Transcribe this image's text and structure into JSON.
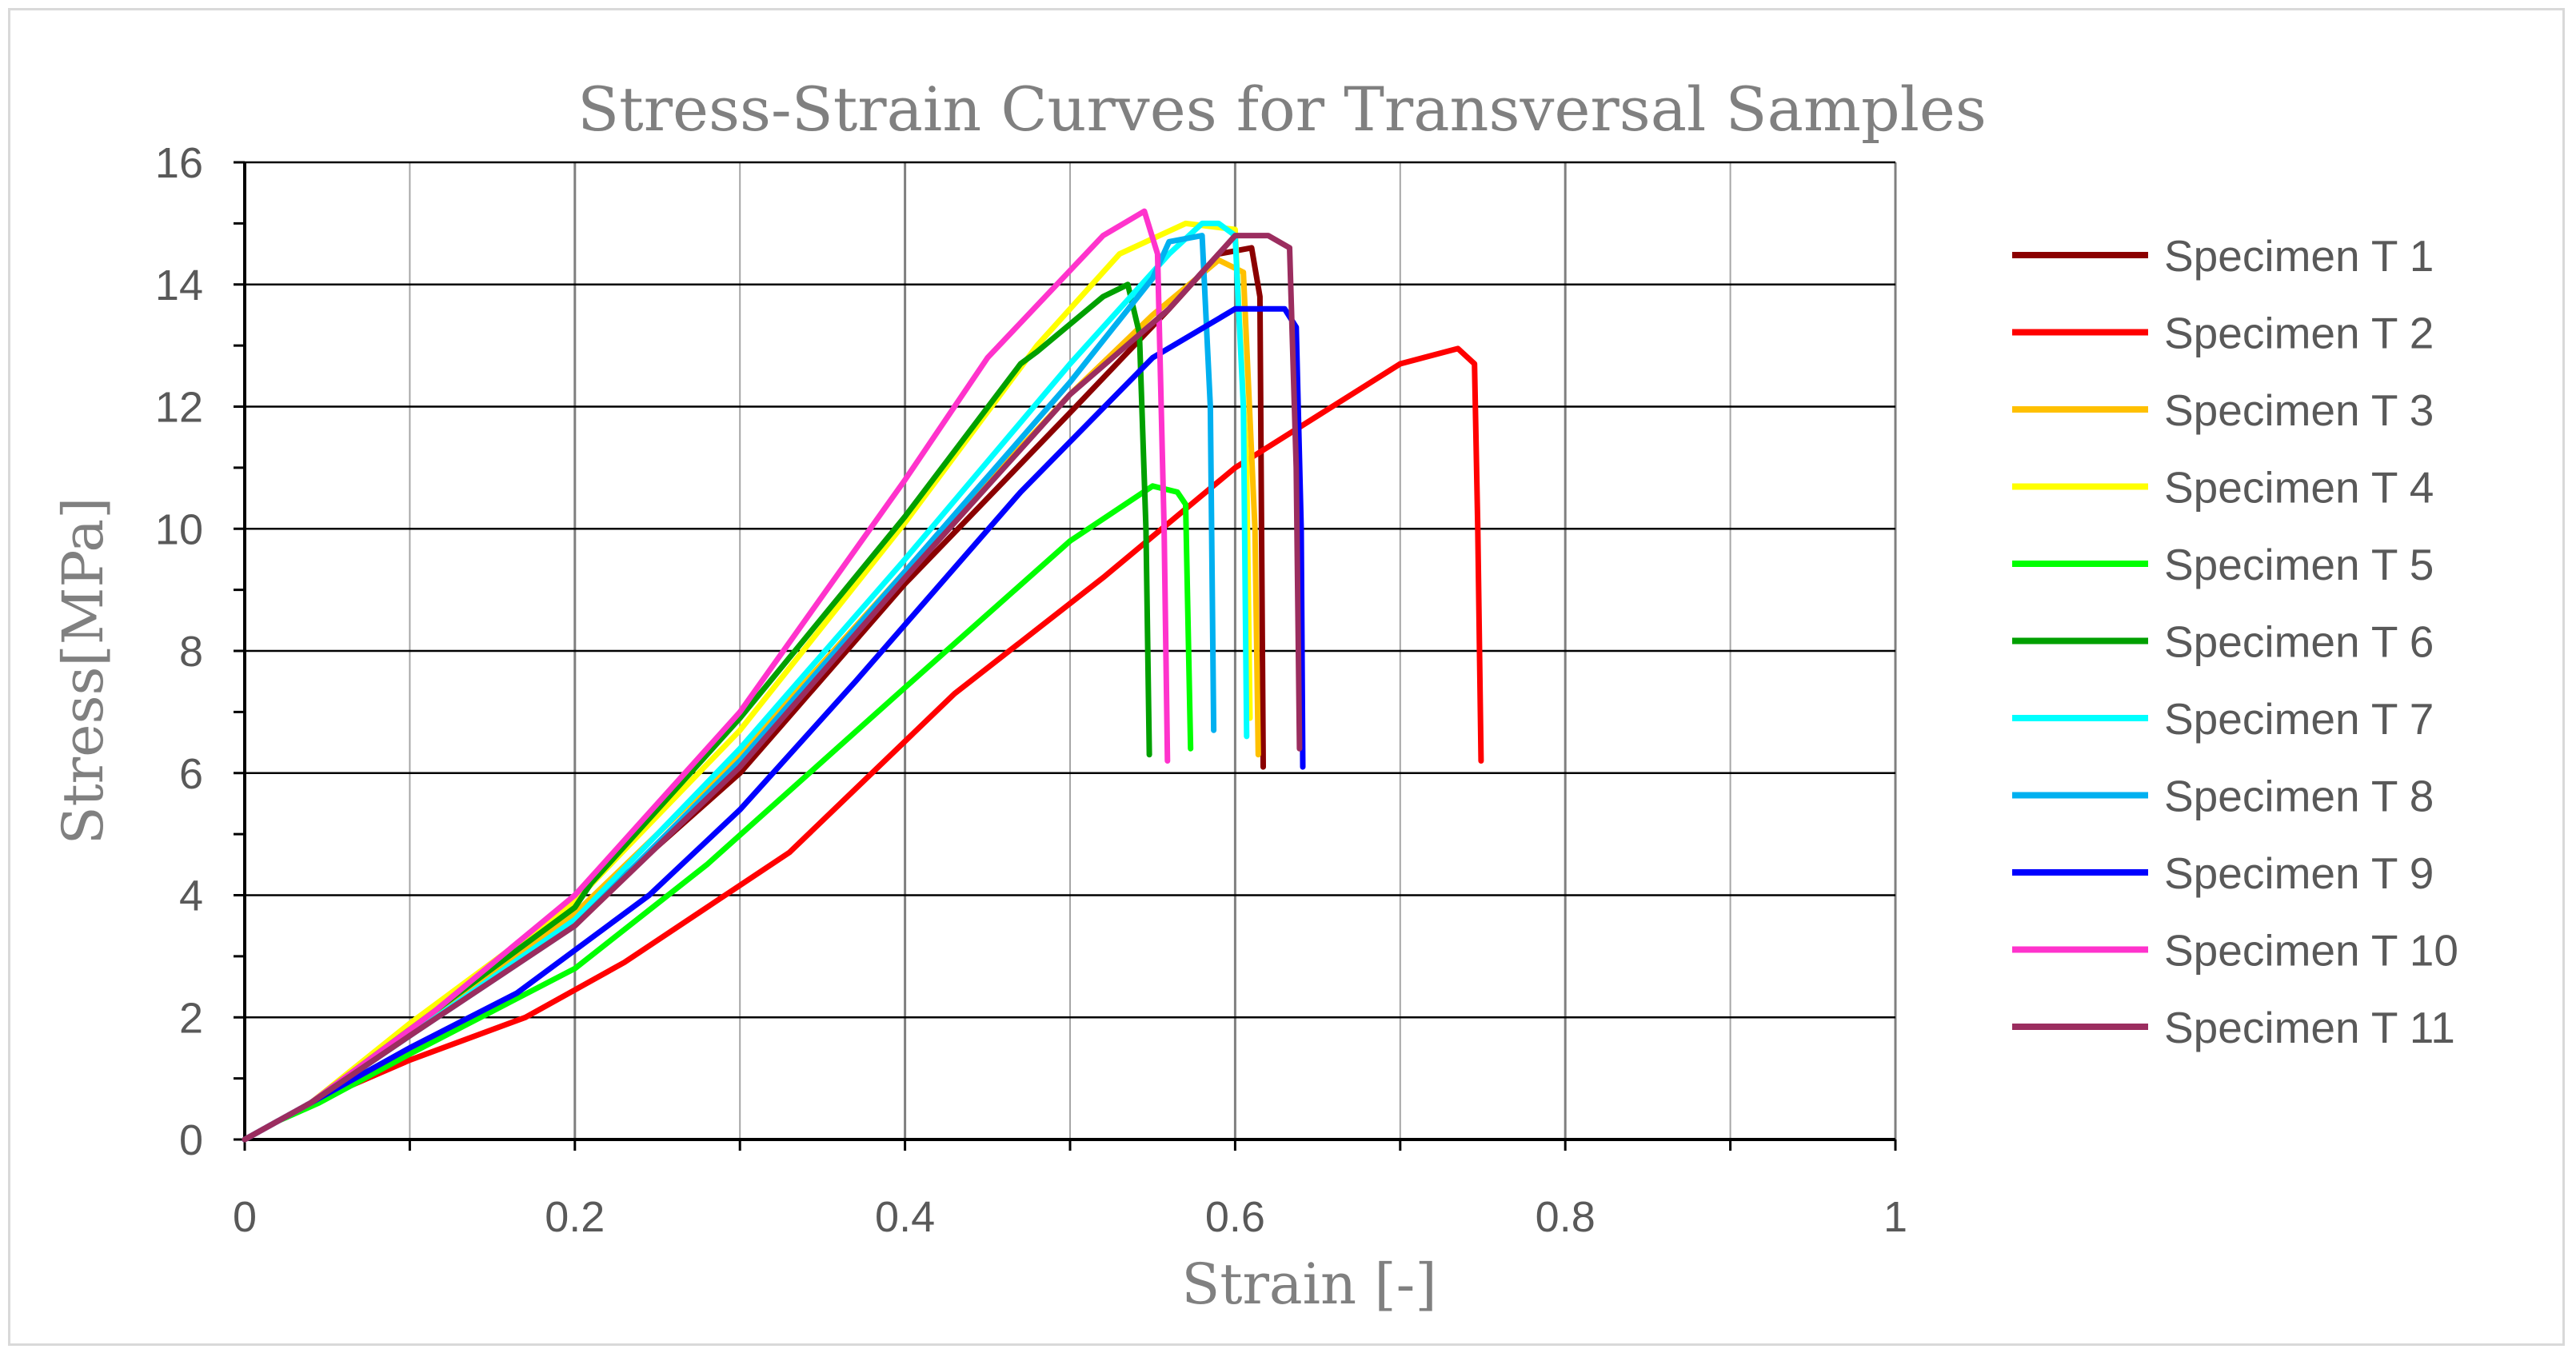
{
  "chart_data": {
    "type": "line",
    "title": "Stress-Strain Curves for Transversal Samples",
    "xlabel": "Strain [-]",
    "ylabel": "Stress[MPa]",
    "xlim": [
      0,
      1
    ],
    "ylim": [
      0,
      16
    ],
    "xticks": [
      0,
      0.2,
      0.4,
      0.6,
      0.8,
      1
    ],
    "xtick_labels": [
      "0",
      "0.2",
      "0.4",
      "0.6",
      "0.8",
      "1"
    ],
    "yticks": [
      0,
      2,
      4,
      6,
      8,
      10,
      12,
      14,
      16
    ],
    "ytick_labels": [
      "0",
      "2",
      "4",
      "6",
      "8",
      "10",
      "12",
      "14",
      "16"
    ],
    "grid": true,
    "legend_position": "right",
    "series": [
      {
        "name": "Specimen T 1",
        "color": "#8b0000",
        "x": [
          0,
          0.02,
          0.04,
          0.1,
          0.2,
          0.3,
          0.4,
          0.5,
          0.56,
          0.59,
          0.61,
          0.615,
          0.617
        ],
        "y": [
          0,
          0.3,
          0.6,
          1.7,
          3.6,
          6.0,
          9.1,
          11.9,
          13.6,
          14.5,
          14.6,
          13.8,
          6.1
        ]
      },
      {
        "name": "Specimen T 2",
        "color": "#ff0000",
        "x": [
          0,
          0.02,
          0.04,
          0.1,
          0.17,
          0.23,
          0.33,
          0.43,
          0.52,
          0.6,
          0.7,
          0.735,
          0.745,
          0.747,
          0.749
        ],
        "y": [
          0,
          0.3,
          0.6,
          1.3,
          2.0,
          2.9,
          4.7,
          7.3,
          9.2,
          11.0,
          12.7,
          12.95,
          12.7,
          10.0,
          6.2
        ]
      },
      {
        "name": "Specimen T 3",
        "color": "#ffc000",
        "x": [
          0,
          0.02,
          0.04,
          0.1,
          0.2,
          0.3,
          0.4,
          0.5,
          0.55,
          0.59,
          0.605,
          0.612,
          0.614
        ],
        "y": [
          0,
          0.3,
          0.6,
          1.8,
          3.7,
          6.3,
          9.3,
          12.2,
          13.5,
          14.4,
          14.2,
          10.0,
          6.3
        ]
      },
      {
        "name": "Specimen T 4",
        "color": "#ffff00",
        "x": [
          0,
          0.02,
          0.04,
          0.1,
          0.2,
          0.3,
          0.4,
          0.48,
          0.53,
          0.57,
          0.6,
          0.607,
          0.609
        ],
        "y": [
          0,
          0.3,
          0.6,
          1.9,
          3.9,
          6.7,
          10.1,
          13.0,
          14.5,
          15.0,
          14.9,
          11.0,
          6.9
        ]
      },
      {
        "name": "Specimen T 5",
        "color": "#00ff00",
        "x": [
          0,
          0.02,
          0.045,
          0.1,
          0.2,
          0.28,
          0.4,
          0.5,
          0.55,
          0.565,
          0.57,
          0.573
        ],
        "y": [
          0,
          0.3,
          0.6,
          1.4,
          2.8,
          4.5,
          7.4,
          9.8,
          10.7,
          10.6,
          10.4,
          6.4
        ]
      },
      {
        "name": "Specimen T 6",
        "color": "#00a000",
        "x": [
          0,
          0.02,
          0.04,
          0.1,
          0.2,
          0.21,
          0.3,
          0.4,
          0.47,
          0.48,
          0.52,
          0.535,
          0.542,
          0.546,
          0.548
        ],
        "y": [
          0,
          0.3,
          0.6,
          1.8,
          3.8,
          4.2,
          6.9,
          10.2,
          12.7,
          12.9,
          13.8,
          14.0,
          13.2,
          10.0,
          6.3
        ]
      },
      {
        "name": "Specimen T 7",
        "color": "#00ffff",
        "x": [
          0,
          0.02,
          0.04,
          0.1,
          0.2,
          0.3,
          0.4,
          0.5,
          0.56,
          0.58,
          0.59,
          0.6,
          0.605,
          0.607
        ],
        "y": [
          0,
          0.3,
          0.6,
          1.7,
          3.6,
          6.4,
          9.5,
          12.7,
          14.5,
          15.0,
          15.0,
          14.8,
          12.0,
          6.6
        ]
      },
      {
        "name": "Specimen T 8",
        "color": "#00b0f0",
        "x": [
          0,
          0.02,
          0.04,
          0.1,
          0.2,
          0.3,
          0.4,
          0.5,
          0.55,
          0.56,
          0.58,
          0.585,
          0.587
        ],
        "y": [
          0,
          0.3,
          0.6,
          1.7,
          3.5,
          6.2,
          9.3,
          12.4,
          14.1,
          14.7,
          14.8,
          12.0,
          6.7
        ]
      },
      {
        "name": "Specimen T 9",
        "color": "#0000ff",
        "x": [
          0,
          0.02,
          0.04,
          0.1,
          0.165,
          0.245,
          0.3,
          0.37,
          0.47,
          0.55,
          0.6,
          0.63,
          0.637,
          0.64,
          0.641
        ],
        "y": [
          0,
          0.3,
          0.6,
          1.5,
          2.4,
          4.0,
          5.4,
          7.5,
          10.6,
          12.8,
          13.6,
          13.6,
          13.3,
          10.0,
          6.1
        ]
      },
      {
        "name": "Specimen T 10",
        "color": "#ff33cc",
        "x": [
          0,
          0.02,
          0.04,
          0.115,
          0.2,
          0.3,
          0.4,
          0.45,
          0.52,
          0.545,
          0.553,
          0.557,
          0.559
        ],
        "y": [
          0,
          0.3,
          0.6,
          2.1,
          4.0,
          7.0,
          10.8,
          12.8,
          14.8,
          15.2,
          14.5,
          10.0,
          6.2
        ]
      },
      {
        "name": "Specimen T 11",
        "color": "#9b2d5f",
        "x": [
          0,
          0.02,
          0.04,
          0.1,
          0.2,
          0.3,
          0.4,
          0.5,
          0.56,
          0.6,
          0.62,
          0.633,
          0.637,
          0.639
        ],
        "y": [
          0,
          0.3,
          0.6,
          1.7,
          3.5,
          6.1,
          9.2,
          12.2,
          13.6,
          14.8,
          14.8,
          14.6,
          11.0,
          6.4
        ]
      }
    ]
  }
}
